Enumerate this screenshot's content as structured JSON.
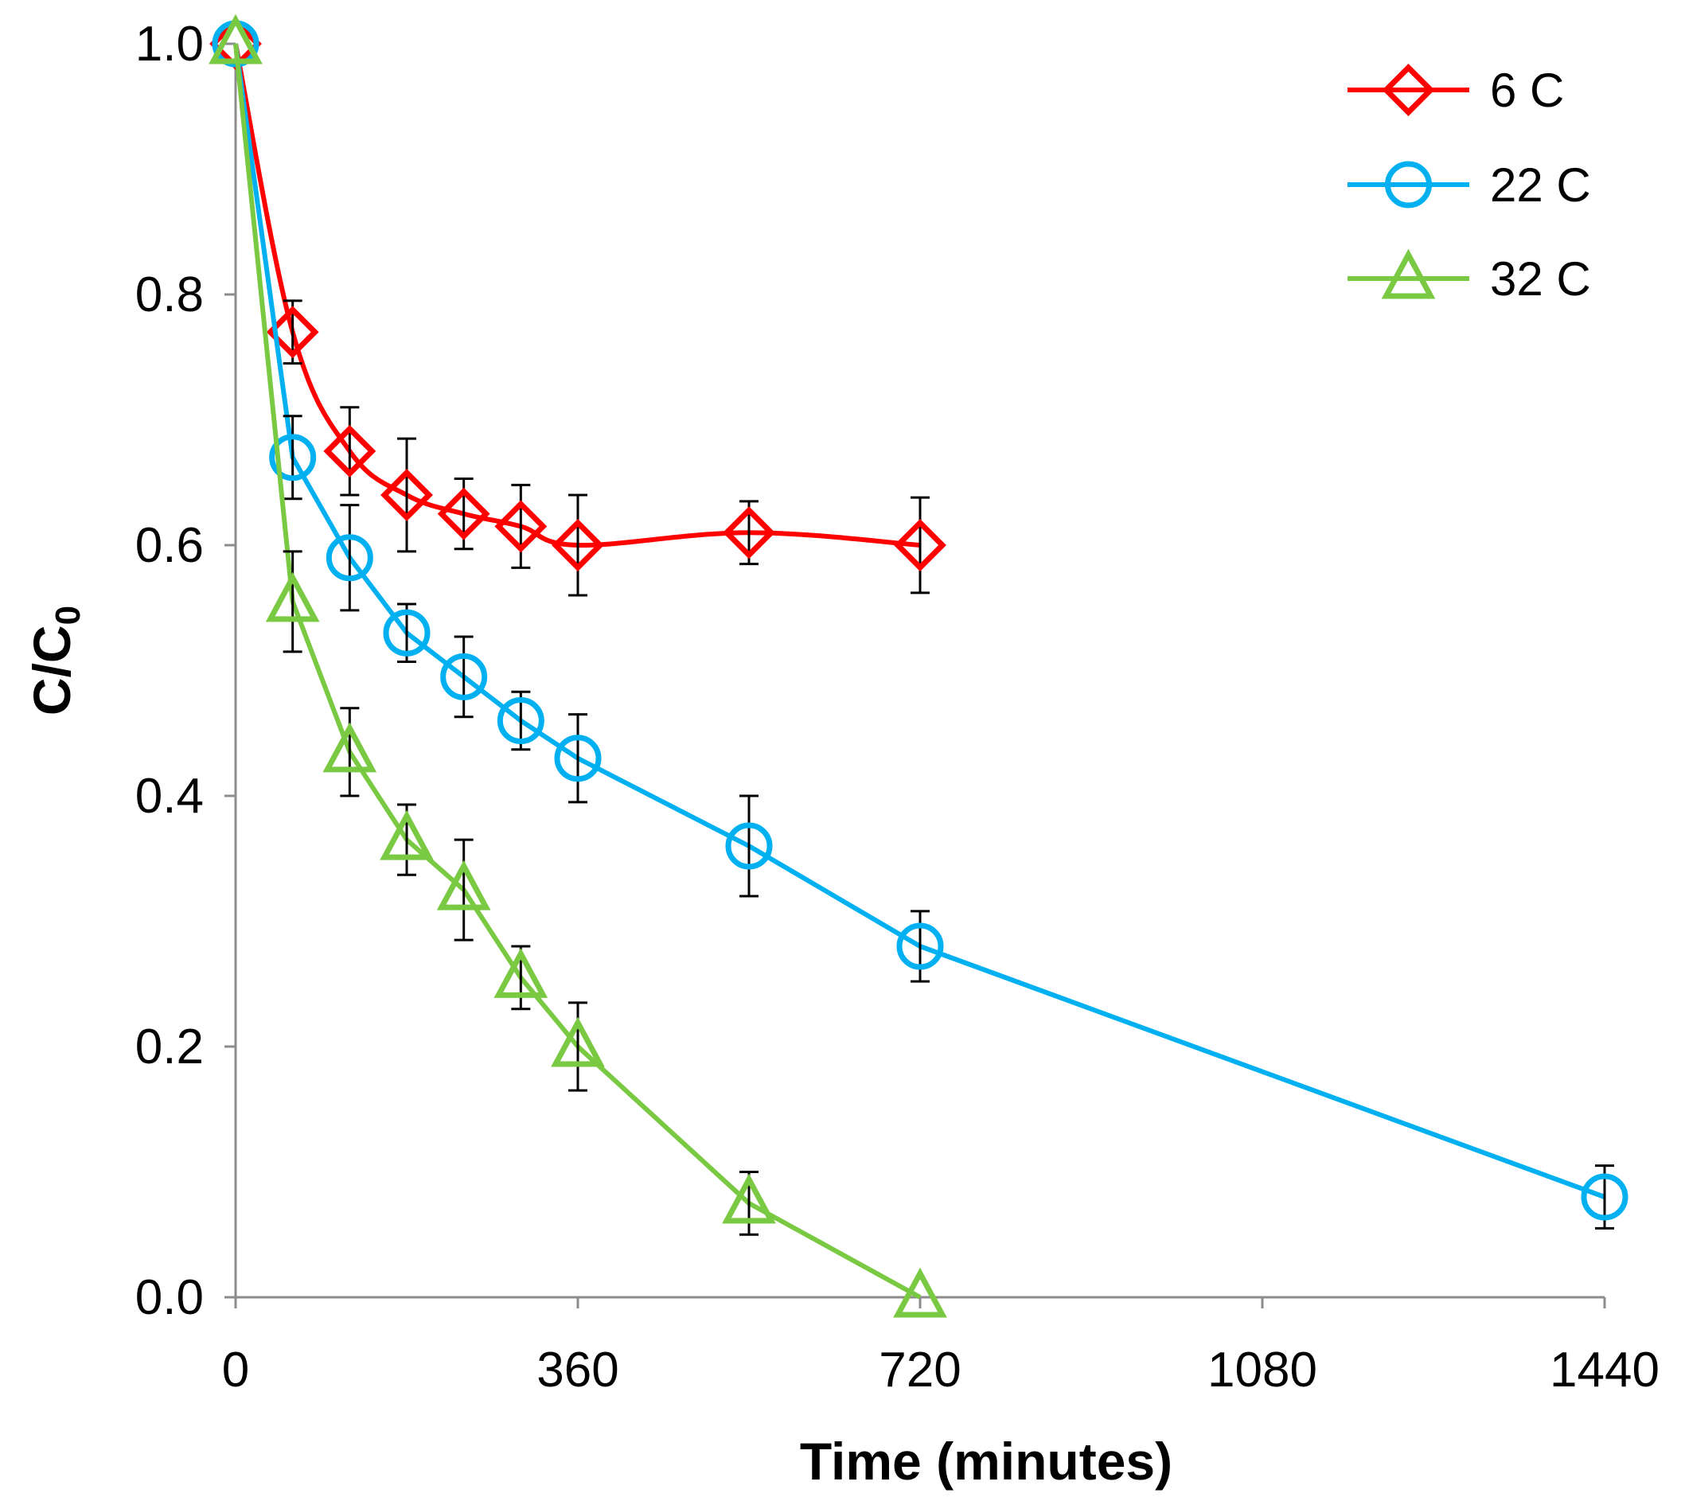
{
  "chart_data": {
    "type": "line",
    "xlabel": "Time (minutes)",
    "ylabel_main": "C/C",
    "ylabel_sub": "0",
    "xlim": [
      0,
      1440
    ],
    "ylim": [
      0,
      1.0
    ],
    "x_ticks": [
      0,
      360,
      720,
      1080,
      1440
    ],
    "y_ticks": [
      0,
      0.2,
      0.4,
      0.6,
      0.8,
      1.0
    ],
    "x_tick_labels": [
      "0",
      "360",
      "720",
      "1080",
      "1440"
    ],
    "y_tick_labels": [
      "0.0",
      "0.2",
      "0.4",
      "0.6",
      "0.8",
      "1.0"
    ],
    "grid": false,
    "legend_position": "top-right",
    "series": [
      {
        "name": "6 C",
        "color": "#ff0000",
        "marker": "diamond",
        "smooth": true,
        "x": [
          0,
          60,
          120,
          180,
          240,
          300,
          360,
          540,
          720
        ],
        "values": [
          1.0,
          0.77,
          0.675,
          0.64,
          0.625,
          0.615,
          0.6,
          0.61,
          0.6
        ],
        "errors": [
          0.0,
          0.025,
          0.035,
          0.045,
          0.028,
          0.033,
          0.04,
          0.025,
          0.038
        ]
      },
      {
        "name": "22 C",
        "color": "#00b0f0",
        "marker": "circle",
        "smooth": false,
        "x": [
          0,
          60,
          120,
          180,
          240,
          300,
          360,
          540,
          720,
          1440
        ],
        "values": [
          1.0,
          0.67,
          0.59,
          0.53,
          0.495,
          0.46,
          0.43,
          0.36,
          0.28,
          0.08
        ],
        "errors": [
          0.0,
          0.033,
          0.042,
          0.023,
          0.032,
          0.023,
          0.035,
          0.04,
          0.028,
          0.025
        ]
      },
      {
        "name": "32 C",
        "color": "#7ac943",
        "marker": "triangle",
        "smooth": false,
        "x": [
          0,
          60,
          120,
          180,
          240,
          300,
          360,
          540,
          720
        ],
        "values": [
          1.0,
          0.555,
          0.435,
          0.365,
          0.325,
          0.255,
          0.2,
          0.075,
          0.0
        ],
        "errors": [
          0.0,
          0.04,
          0.035,
          0.028,
          0.04,
          0.025,
          0.035,
          0.025,
          0.0
        ]
      }
    ]
  }
}
